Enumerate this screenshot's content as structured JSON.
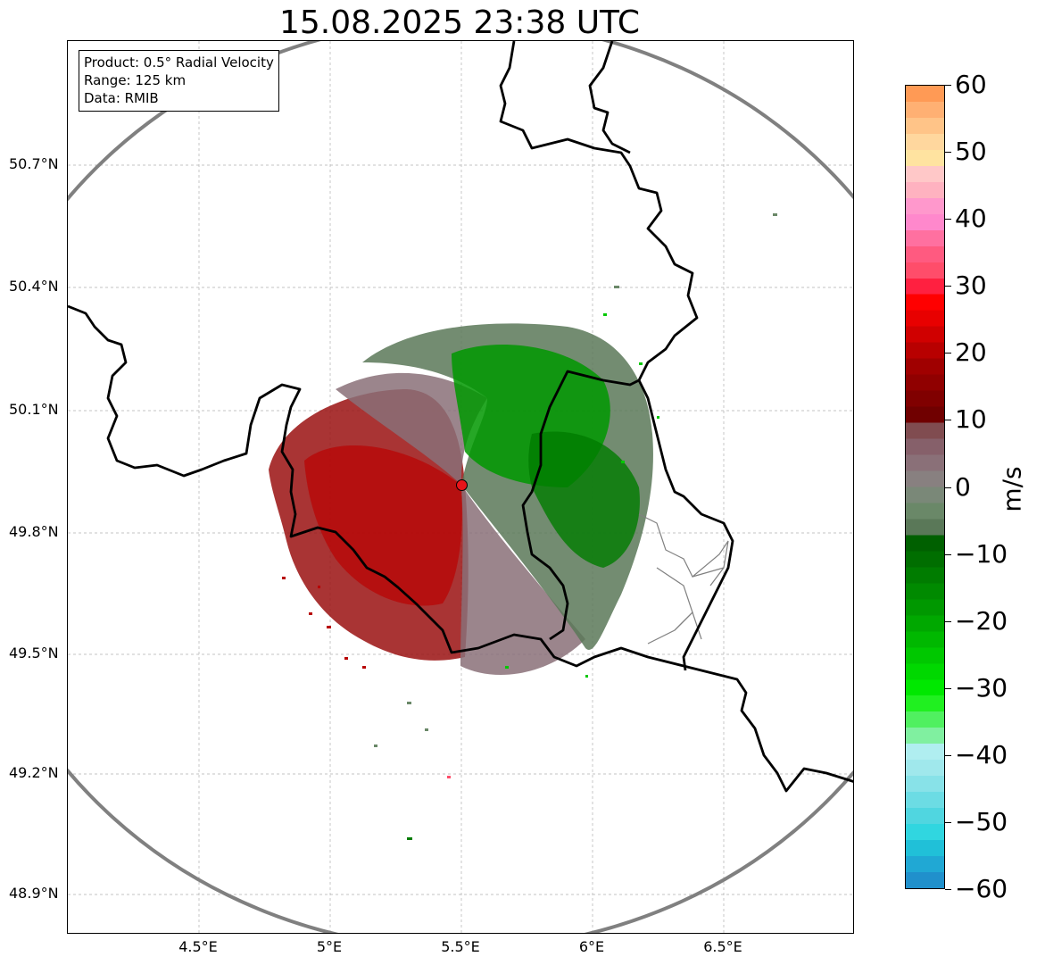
{
  "title": "15.08.2025 23:38 UTC",
  "info": {
    "product": "Product: 0.5° Radial Velocity",
    "range": "Range: 125 km",
    "data": "Data: RMIB"
  },
  "axes": {
    "lat_ticks": [
      "50.7°N",
      "50.4°N",
      "50.1°N",
      "49.8°N",
      "49.5°N",
      "49.2°N",
      "48.9°N"
    ],
    "lon_ticks": [
      "4.5°E",
      "5°E",
      "5.5°E",
      "6°E",
      "6.5°E"
    ]
  },
  "colorbar": {
    "label": "m/s",
    "min": -60,
    "max": 60,
    "ticks": [
      "60",
      "50",
      "40",
      "30",
      "20",
      "10",
      "0",
      "−10",
      "−20",
      "−30",
      "−40",
      "−50",
      "−60"
    ],
    "colors_top_to_bottom": [
      "#ff9a55",
      "#ffb073",
      "#ffc488",
      "#ffd79e",
      "#ffe3a0",
      "#ffc8c8",
      "#ffb2c0",
      "#ff98cc",
      "#ff88cc",
      "#ff70a0",
      "#ff5a80",
      "#ff4d6a",
      "#ff2040",
      "#ff0000",
      "#e80000",
      "#d00000",
      "#b80000",
      "#a00000",
      "#900000",
      "#800000",
      "#700000",
      "#804c50",
      "#86606a",
      "#8a7078",
      "#888080",
      "#7a8878",
      "#6a8868",
      "#5a7858",
      "#006000",
      "#006e00",
      "#007c00",
      "#008a00",
      "#009800",
      "#00a800",
      "#00b800",
      "#00c800",
      "#00d800",
      "#00e800",
      "#20f020",
      "#50f060",
      "#80f0a0",
      "#b0eef0",
      "#a0e8ec",
      "#88e2e8",
      "#6cdce4",
      "#50d6e0",
      "#30d6e0",
      "#20c0d8",
      "#20a8d4",
      "#2090cc"
    ]
  },
  "radar": {
    "site_color": "#e8141a",
    "range_ring_color": "#808080",
    "border_color": "#000000"
  }
}
